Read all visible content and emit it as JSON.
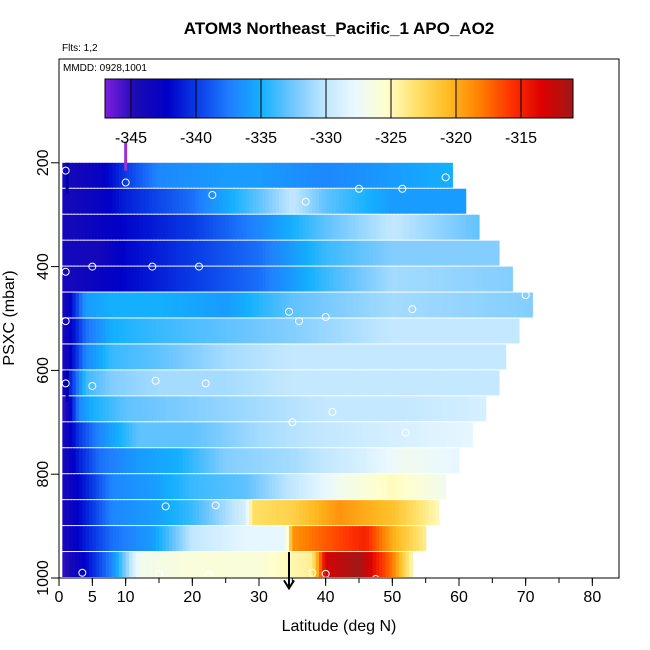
{
  "chart_data": {
    "type": "heatmap",
    "title": "ATOM3 Northeast_Pacific_1 APO_AO2",
    "annotations": {
      "flights": "Flts: 1,2",
      "dates": "MMDD: 0928,1001"
    },
    "xlabel": "Latitude (deg N)",
    "ylabel": "PSXC (mbar)",
    "xlim": [
      0,
      84
    ],
    "ylim": [
      1000,
      0
    ],
    "xticks": [
      0,
      5,
      10,
      20,
      30,
      40,
      50,
      60,
      70,
      80
    ],
    "xtick_labels": [
      "0",
      "5",
      "10",
      "20",
      "30",
      "40",
      "50",
      "60",
      "70",
      "80"
    ],
    "yticks": [
      200,
      400,
      600,
      800,
      1000
    ],
    "ytick_labels": [
      "200",
      "400",
      "600",
      "800",
      "1000"
    ],
    "colorbar": {
      "range": [
        -347,
        -311
      ],
      "ticks": [
        -345,
        -340,
        -335,
        -330,
        -325,
        -320,
        -315
      ],
      "tick_labels": [
        "-345",
        "-340",
        "-335",
        "-330",
        "-325",
        "-320",
        "-315"
      ],
      "colors": [
        "#7f1fe0",
        "#1a0bb5",
        "#0000c8",
        "#0a3fe8",
        "#1f7fff",
        "#14b0ff",
        "#6fc6ff",
        "#bfe6ff",
        "#eaf8ff",
        "#ffffcc",
        "#ffe066",
        "#ffbb22",
        "#ff8000",
        "#ff3300",
        "#dd0000",
        "#a01818"
      ]
    },
    "rows": [
      {
        "p": 225,
        "x_end": 59,
        "lat": [
          2,
          6,
          10,
          15,
          25,
          30,
          40,
          50,
          59
        ],
        "val": [
          -344,
          -343,
          -340,
          -337,
          -336,
          -336,
          -337,
          -336,
          -335
        ]
      },
      {
        "p": 275,
        "x_end": 61,
        "lat": [
          2,
          6,
          10,
          20,
          30,
          35,
          40,
          50,
          61
        ],
        "val": [
          -344,
          -343,
          -341,
          -338,
          -333,
          -330,
          -333,
          -336,
          -336
        ]
      },
      {
        "p": 325,
        "x_end": 63,
        "lat": [
          2,
          6,
          10,
          20,
          30,
          40,
          50,
          63
        ],
        "val": [
          -344,
          -343,
          -342,
          -340,
          -337,
          -333,
          -330,
          -333
        ]
      },
      {
        "p": 375,
        "x_end": 66,
        "lat": [
          2,
          6,
          10,
          20,
          30,
          40,
          50,
          66
        ],
        "val": [
          -344,
          -344,
          -342,
          -340,
          -338,
          -334,
          -332,
          -332
        ]
      },
      {
        "p": 425,
        "x_end": 68,
        "lat": [
          2,
          6,
          10,
          20,
          30,
          40,
          50,
          68
        ],
        "val": [
          -344,
          -343,
          -342,
          -340,
          -338,
          -334,
          -331,
          -332
        ]
      },
      {
        "p": 475,
        "x_end": 71,
        "lat": [
          1,
          4,
          8,
          15,
          25,
          35,
          50,
          71
        ],
        "val": [
          -344,
          -336,
          -335,
          -335,
          -336,
          -333,
          -331,
          -332
        ]
      },
      {
        "p": 525,
        "x_end": 69,
        "lat": [
          1,
          4,
          8,
          15,
          25,
          35,
          50,
          69
        ],
        "val": [
          -344,
          -338,
          -335,
          -334,
          -333,
          -332,
          -330,
          -330
        ]
      },
      {
        "p": 575,
        "x_end": 67,
        "lat": [
          1,
          4,
          8,
          15,
          25,
          35,
          50,
          67
        ],
        "val": [
          -344,
          -337,
          -334,
          -333,
          -331,
          -330,
          -330,
          -330
        ]
      },
      {
        "p": 625,
        "x_end": 66,
        "lat": [
          1,
          4,
          8,
          15,
          25,
          35,
          50,
          66
        ],
        "val": [
          -343,
          -334,
          -332,
          -331,
          -331,
          -330,
          -330,
          -330
        ]
      },
      {
        "p": 675,
        "x_end": 64,
        "lat": [
          1,
          3,
          5,
          10,
          20,
          30,
          40,
          50,
          64
        ],
        "val": [
          -345,
          -337,
          -335,
          -333,
          -332,
          -331,
          -330,
          -330,
          -329
        ]
      },
      {
        "p": 725,
        "x_end": 62,
        "lat": [
          1,
          3,
          6,
          12,
          20,
          30,
          40,
          50,
          62
        ],
        "val": [
          -344,
          -340,
          -337,
          -333,
          -333,
          -331,
          -330,
          -329,
          -328
        ]
      },
      {
        "p": 775,
        "x_end": 60,
        "lat": [
          1,
          3,
          6,
          12,
          18,
          25,
          35,
          45,
          52,
          60
        ],
        "val": [
          -344,
          -341,
          -338,
          -336,
          -335,
          -332,
          -331,
          -329,
          -327,
          -328
        ]
      },
      {
        "p": 825,
        "x_end": 58,
        "lat": [
          1,
          4,
          8,
          14,
          20,
          28,
          35,
          42,
          50,
          58
        ],
        "val": [
          -344,
          -341,
          -337,
          -336,
          -334,
          -333,
          -330,
          -327,
          -325,
          -327
        ]
      },
      {
        "p": 875,
        "x_end": 57,
        "lat": [
          1,
          4,
          8,
          14,
          20,
          28,
          29,
          35,
          42,
          50,
          57
        ],
        "val": [
          -344,
          -341,
          -337,
          -336,
          -334,
          -329,
          -323,
          -322,
          -319,
          -321,
          -325
        ]
      },
      {
        "p": 925,
        "x_end": 55,
        "lat": [
          1,
          4,
          8,
          14,
          20,
          28,
          34,
          35,
          40,
          46,
          50,
          55
        ],
        "val": [
          -344,
          -341,
          -338,
          -336,
          -330,
          -328,
          -328,
          -319,
          -317,
          -315,
          -320,
          -324
        ]
      },
      {
        "p": 975,
        "x_end": 53,
        "lat": [
          1,
          4,
          8,
          12,
          20,
          30,
          38,
          40,
          45,
          50,
          53
        ],
        "val": [
          -345,
          -342,
          -337,
          -327,
          -326,
          -326,
          -324,
          -313,
          -311,
          -318,
          -325
        ]
      }
    ],
    "points": [
      [
        1,
        215
      ],
      [
        10,
        238
      ],
      [
        23,
        262
      ],
      [
        37,
        275
      ],
      [
        45,
        250
      ],
      [
        51.5,
        250
      ],
      [
        58,
        228
      ],
      [
        1,
        410
      ],
      [
        5,
        400
      ],
      [
        14,
        400
      ],
      [
        21,
        400
      ],
      [
        34.5,
        487
      ],
      [
        40,
        497
      ],
      [
        53,
        482
      ],
      [
        70,
        455
      ],
      [
        1,
        625
      ],
      [
        5,
        630
      ],
      [
        14.5,
        620
      ],
      [
        22,
        625
      ],
      [
        36,
        505
      ],
      [
        41,
        680
      ],
      [
        35,
        700
      ],
      [
        52,
        720
      ],
      [
        16,
        862
      ],
      [
        23.5,
        860
      ],
      [
        3.5,
        990
      ],
      [
        15,
        992
      ],
      [
        22.5,
        995
      ],
      [
        38,
        990
      ],
      [
        40,
        992
      ],
      [
        47.5,
        1002
      ],
      [
        1,
        505
      ]
    ],
    "marker_top": {
      "lat": 10,
      "p_from": 160,
      "p_to": 215,
      "color": "#9933cc"
    },
    "marker_arrow": {
      "lat": 34.5,
      "p_from": 950,
      "p_to": 1020,
      "color": "#000000"
    },
    "left_edge_dark": [
      [
        1,
        200,
        260
      ],
      [
        1,
        600,
        660
      ]
    ]
  }
}
